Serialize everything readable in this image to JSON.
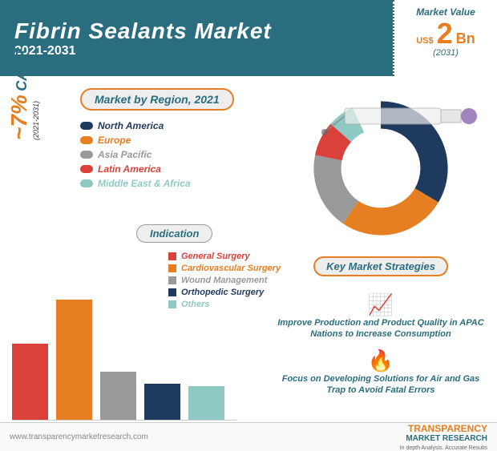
{
  "header": {
    "title": "Fibrin Sealants Market",
    "period": "2021-2031",
    "market_value_label": "Market Value",
    "currency": "US$",
    "value": "2",
    "unit": "Bn",
    "value_year": "(2031)"
  },
  "cagr": {
    "value": "~7%",
    "label": "CAGR",
    "period": "(2021-2031)"
  },
  "region": {
    "title": "Market by Region, 2021",
    "items": [
      {
        "label": "North America",
        "color": "#1e3a5f",
        "value": 36
      },
      {
        "label": "Europe",
        "color": "#e67e22",
        "value": 28
      },
      {
        "label": "Asia Pacific",
        "color": "#999999",
        "value": 20
      },
      {
        "label": "Latin America",
        "color": "#d9413a",
        "value": 9
      },
      {
        "label": "Middle East & Africa",
        "color": "#8fc9c4",
        "value": 7
      }
    ]
  },
  "indication": {
    "title": "Indication",
    "items": [
      {
        "label": "General Surgery",
        "color": "#d9413a",
        "value": 95
      },
      {
        "label": "Cardiovascular Surgery",
        "color": "#e67e22",
        "value": 150
      },
      {
        "label": "Wound Management",
        "color": "#999999",
        "value": 60
      },
      {
        "label": "Orthopedic Surgery",
        "color": "#1e3a5f",
        "value": 45
      },
      {
        "label": "Others",
        "color": "#8fc9c4",
        "value": 42
      }
    ]
  },
  "strategies": {
    "title": "Key Market Strategies",
    "items": [
      {
        "icon": "📈",
        "text": "Improve Production and Product Quality in APAC Nations to Increase Consumption"
      },
      {
        "icon": "🔥",
        "text": "Focus on Developing Solutions for Air and Gas Trap to Avoid Fatal Errors"
      }
    ]
  },
  "footer": {
    "url": "www.transparencymarketresearch.com",
    "logo_main": "TRANSPARENCY",
    "logo_sub": "MARKET RESEARCH",
    "logo_tag": "In depth Analysis. Accurate Results"
  },
  "colors": {
    "primary": "#2a6d7f",
    "accent": "#e67e22",
    "bg": "#ffffff"
  }
}
